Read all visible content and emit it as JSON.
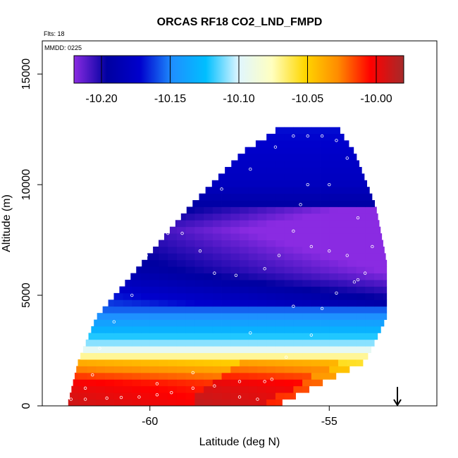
{
  "chart_data": {
    "type": "heatmap",
    "title": "ORCAS RF18 CO2_LND_FMPD",
    "annotations": {
      "flights": "Flts: 18",
      "date": "MMDD: 0225"
    },
    "xlabel": "Latitude (deg N)",
    "ylabel": "Altitude (m)",
    "xlim": [
      -63.0,
      -52.0
    ],
    "ylim": [
      0,
      16500
    ],
    "x_ticks": [
      -60,
      -55
    ],
    "x_tick_labels": [
      "-60",
      "-55"
    ],
    "y_ticks": [
      0,
      5000,
      10000,
      15000
    ],
    "y_tick_labels": [
      "0",
      "5000",
      "10000",
      "15000"
    ],
    "colorbar": {
      "vmin": -10.22,
      "vmax": -9.98,
      "ticks": [
        -10.2,
        -10.15,
        -10.1,
        -10.05,
        -10.0
      ],
      "tick_labels": [
        "-10.20",
        "-10.15",
        "-10.10",
        "-10.05",
        "-10.00"
      ],
      "colors": [
        "#8a2be2",
        "#0000a0",
        "#0000cd",
        "#1e90ff",
        "#00bfff",
        "#e0f6ff",
        "#ffffc0",
        "#ffd700",
        "#ff8c00",
        "#ff0000",
        "#a52a2a"
      ]
    },
    "field_profile": [
      {
        "alt": 0,
        "value": -10.0
      },
      {
        "alt": 1000,
        "value": -10.01
      },
      {
        "alt": 2000,
        "value": -10.05
      },
      {
        "alt": 2600,
        "value": -10.1
      },
      {
        "alt": 3400,
        "value": -10.13
      },
      {
        "alt": 4500,
        "value": -10.16
      },
      {
        "alt": 6000,
        "value": -10.19
      },
      {
        "alt": 8000,
        "value": -10.21
      },
      {
        "alt": 10000,
        "value": -10.18
      },
      {
        "alt": 12500,
        "value": -10.17
      }
    ],
    "domain_envelope": [
      {
        "alt": 0,
        "lat_min": -62.3,
        "lat_max": -56.5
      },
      {
        "alt": 2000,
        "lat_min": -62.0,
        "lat_max": -54.0
      },
      {
        "alt": 4000,
        "lat_min": -61.5,
        "lat_max": -53.4
      },
      {
        "alt": 6500,
        "lat_min": -60.2,
        "lat_max": -53.4
      },
      {
        "alt": 9000,
        "lat_min": -58.9,
        "lat_max": -53.7
      },
      {
        "alt": 11500,
        "lat_min": -57.4,
        "lat_max": -54.3
      },
      {
        "alt": 12400,
        "lat_min": -56.5,
        "lat_max": -54.7
      }
    ],
    "flight_track": [
      [
        -62.2,
        300
      ],
      [
        -61.8,
        300
      ],
      [
        -61.2,
        350
      ],
      [
        -60.8,
        380
      ],
      [
        -60.3,
        400
      ],
      [
        -59.8,
        500
      ],
      [
        -59.4,
        600
      ],
      [
        -58.8,
        800
      ],
      [
        -58.2,
        900
      ],
      [
        -57.5,
        400
      ],
      [
        -57.0,
        300
      ],
      [
        -56.6,
        1200
      ],
      [
        -56.2,
        2200
      ],
      [
        -55.5,
        3200
      ],
      [
        -55.2,
        4400
      ],
      [
        -54.8,
        5100
      ],
      [
        -54.3,
        5600
      ],
      [
        -54.0,
        6000
      ],
      [
        -54.5,
        6800
      ],
      [
        -55.0,
        7000
      ],
      [
        -55.5,
        7200
      ],
      [
        -56.0,
        7900
      ],
      [
        -56.4,
        6800
      ],
      [
        -56.8,
        6200
      ],
      [
        -57.6,
        5900
      ],
      [
        -58.2,
        6000
      ],
      [
        -58.6,
        7000
      ],
      [
        -59.1,
        7800
      ],
      [
        -59.5,
        7800
      ],
      [
        -60.1,
        6800
      ],
      [
        -60.5,
        5000
      ],
      [
        -61.0,
        3800
      ],
      [
        -61.4,
        2600
      ],
      [
        -61.6,
        1400
      ],
      [
        -61.8,
        800
      ],
      [
        -58.0,
        9800
      ],
      [
        -57.2,
        10700
      ],
      [
        -56.5,
        11700
      ],
      [
        -56.0,
        12200
      ],
      [
        -55.6,
        12200
      ],
      [
        -55.2,
        12200
      ],
      [
        -54.8,
        12000
      ],
      [
        -54.5,
        11200
      ],
      [
        -55.0,
        10000
      ],
      [
        -55.6,
        10000
      ],
      [
        -55.8,
        9100
      ],
      [
        -54.2,
        8500
      ],
      [
        -53.8,
        7200
      ],
      [
        -54.2,
        5700
      ],
      [
        -56.0,
        4500
      ],
      [
        -57.2,
        3300
      ],
      [
        -58.8,
        1500
      ],
      [
        -59.8,
        1000
      ],
      [
        -57.5,
        1100
      ],
      [
        -56.8,
        1100
      ]
    ],
    "arrow_marker": {
      "lat": -53.1,
      "alt": 600,
      "direction": "down"
    }
  }
}
